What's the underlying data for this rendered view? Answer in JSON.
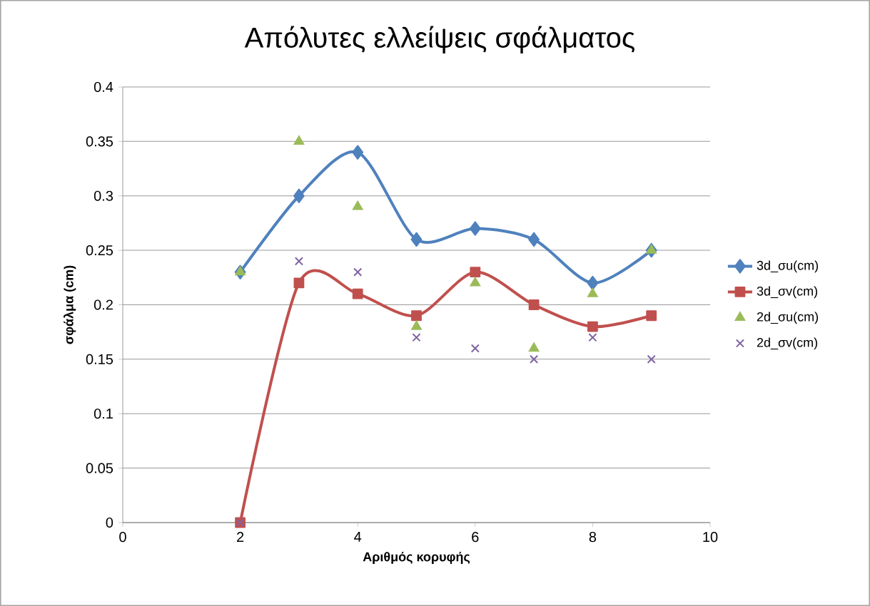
{
  "chart_data": {
    "type": "line",
    "title": "Απόλυτες ελλείψεις σφάλματος",
    "xlabel": "Αριθμός κορυφής",
    "ylabel": "σφάλμα (cm)",
    "x": [
      2,
      3,
      4,
      5,
      6,
      7,
      8,
      9
    ],
    "series": [
      {
        "name": "3d_σu(cm)",
        "color": "#4f81bd",
        "marker": "diamond",
        "values": [
          0.23,
          0.3,
          0.34,
          0.26,
          0.27,
          0.26,
          0.22,
          0.25
        ]
      },
      {
        "name": "3d_σv(cm)",
        "color": "#c0504d",
        "marker": "square",
        "values": [
          0,
          0.22,
          0.21,
          0.19,
          0.23,
          0.2,
          0.18,
          0.19
        ]
      },
      {
        "name": "2d_σu(cm)",
        "type": "scatter",
        "color": "#9bbb59",
        "marker": "triangle",
        "values": [
          0.23,
          0.35,
          0.29,
          0.18,
          0.22,
          0.16,
          0.21,
          0.25
        ]
      },
      {
        "name": "2d_σv(cm)",
        "type": "scatter",
        "color": "#8064a2",
        "marker": "cross",
        "values": [
          0,
          0.24,
          0.23,
          0.17,
          0.16,
          0.15,
          0.17,
          0.15
        ]
      }
    ],
    "xlim": [
      0,
      10
    ],
    "xticks": [
      0,
      2,
      4,
      6,
      8,
      10
    ],
    "ylim": [
      0,
      0.4
    ],
    "yticks": [
      0,
      0.05,
      0.1,
      0.15,
      0.2,
      0.25,
      0.3,
      0.35,
      0.4
    ],
    "grid": "y",
    "legend": "right"
  }
}
